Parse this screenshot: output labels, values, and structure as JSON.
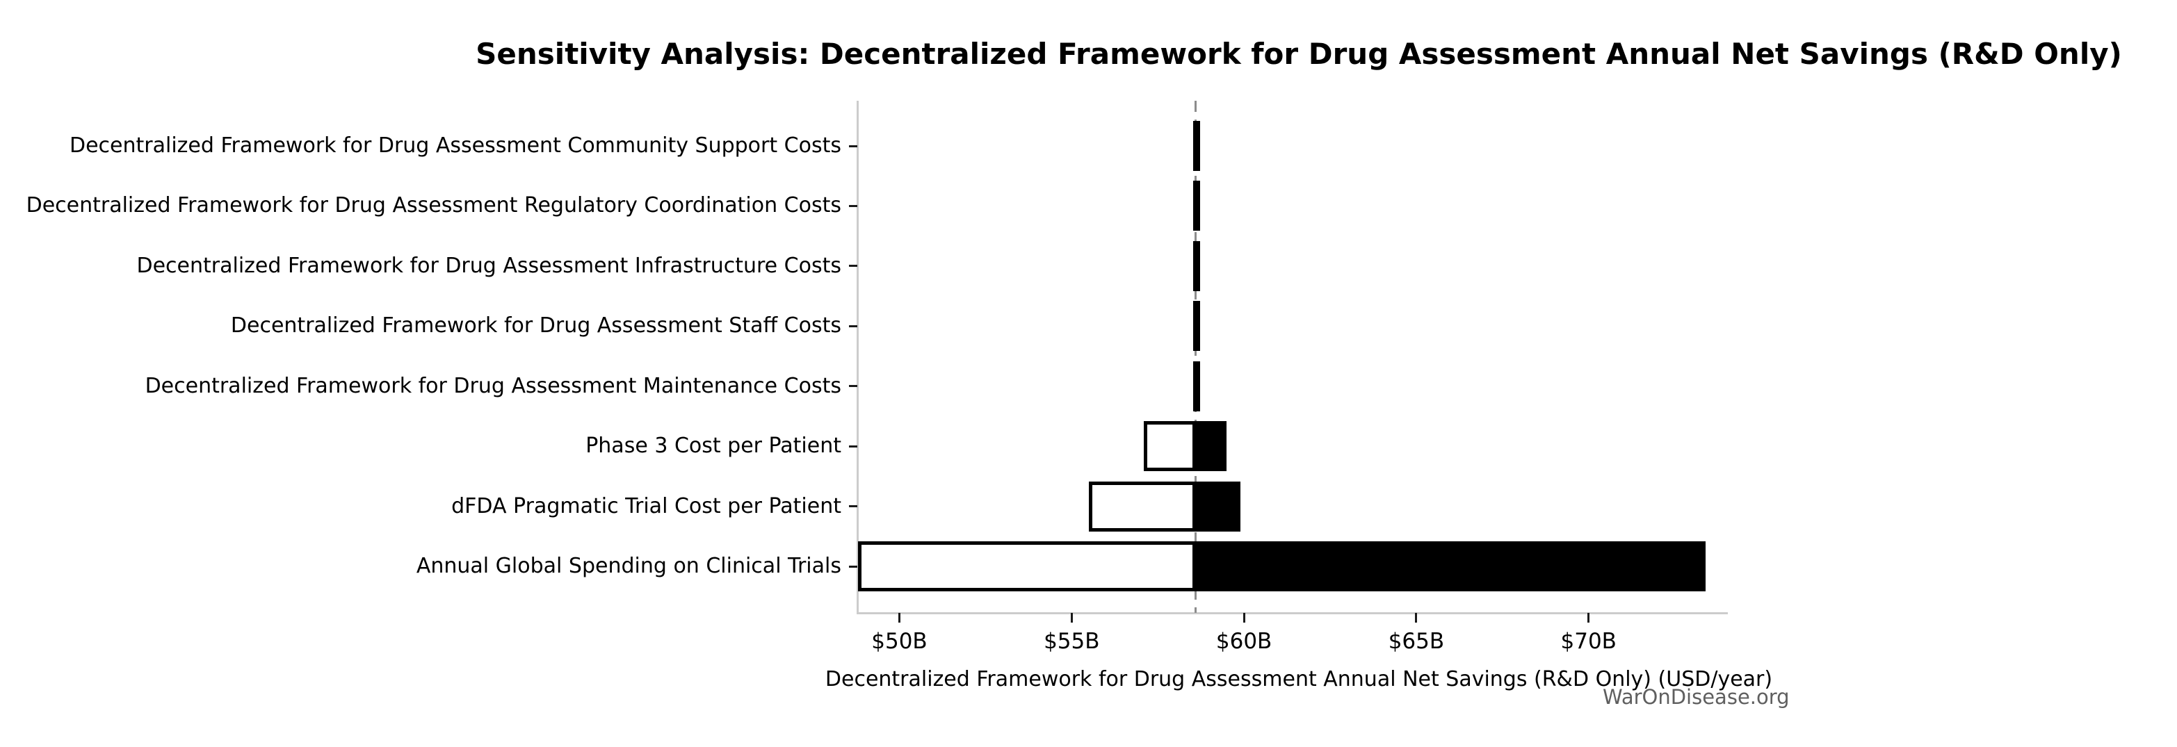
{
  "watermark": {
    "text": "WarOnDisease.org"
  },
  "colors": {
    "background": "#ffffff",
    "bar_high_fill": "#000000",
    "bar_low_fill": "#ffffff",
    "bar_edge": "#000000",
    "baseline_dash": "#8c8c8c",
    "spine": "#cccccc",
    "tick_mark": "#1a1a1a",
    "text": "#000000",
    "watermark_text": "#5f5f5f"
  },
  "chart_data": {
    "type": "bar",
    "subtype": "tornado-sensitivity",
    "orientation": "horizontal",
    "title": "Sensitivity Analysis: Decentralized Framework for Drug Assessment Annual Net Savings (R&D Only)",
    "xlabel": "Decentralized Framework for Drug Assessment Annual Net Savings (R&D Only) (USD/year)",
    "ylabel": "",
    "x_unit": "USD billions per year",
    "baseline_value": 58.6,
    "xlim": [
      48.8,
      74.0
    ],
    "grid": false,
    "legend": false,
    "xticks": [
      {
        "value": 50,
        "label": "$50B"
      },
      {
        "value": 55,
        "label": "$55B"
      },
      {
        "value": 60,
        "label": "$60B"
      },
      {
        "value": 65,
        "label": "$65B"
      },
      {
        "value": 70,
        "label": "$70B"
      }
    ],
    "rows": [
      {
        "label": "Decentralized Framework for Drug Assessment Community Support Costs",
        "low": 58.52,
        "high": 58.68
      },
      {
        "label": "Decentralized Framework for Drug Assessment Regulatory Coordination Costs",
        "low": 58.52,
        "high": 58.68
      },
      {
        "label": "Decentralized Framework for Drug Assessment Infrastructure Costs",
        "low": 58.52,
        "high": 58.68
      },
      {
        "label": "Decentralized Framework for Drug Assessment Staff Costs",
        "low": 58.52,
        "high": 58.68
      },
      {
        "label": "Decentralized Framework for Drug Assessment Maintenance Costs",
        "low": 58.52,
        "high": 58.68
      },
      {
        "label": "Phase 3 Cost per Patient",
        "low": 57.1,
        "high": 59.5
      },
      {
        "label": "dFDA Pragmatic Trial Cost per Patient",
        "low": 55.5,
        "high": 59.9
      },
      {
        "label": "Annual Global Spending on Clinical Trials",
        "low": 48.8,
        "high": 73.4
      }
    ]
  }
}
